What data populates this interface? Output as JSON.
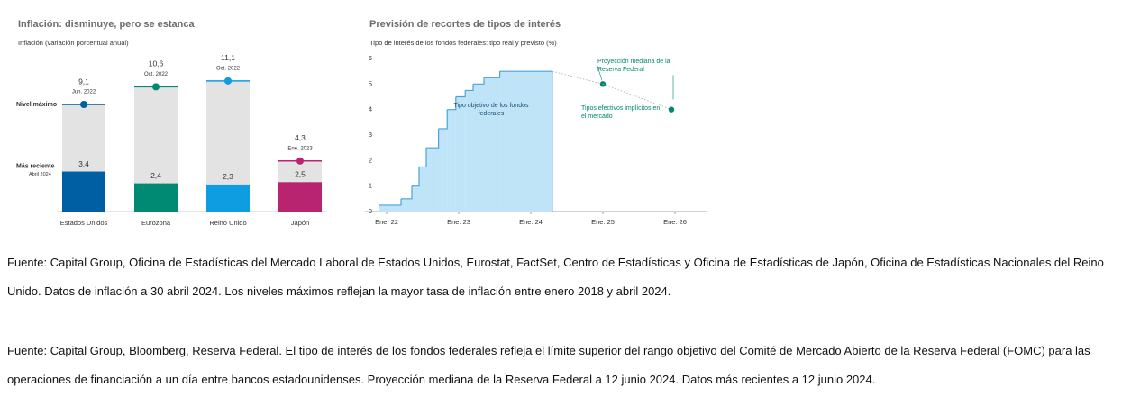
{
  "chart_data": [
    {
      "type": "bar",
      "title": "Inflación: disminuye, pero se estanca",
      "subtitle": "Inflación (variación porcentual anual)",
      "categories": [
        "Estados Unidos",
        "Eurozona",
        "Reino Unido",
        "Japón"
      ],
      "colors": [
        "#005fa3",
        "#008a73",
        "#0d9de0",
        "#b8246f"
      ],
      "background_color": "#e3e3e3",
      "ylim": [
        0,
        13
      ],
      "series": [
        {
          "name": "Nivel máximo",
          "values": [
            9.1,
            10.6,
            11.1,
            4.3
          ],
          "value_labels": [
            "9,1",
            "10,6",
            "11,1",
            "4,3"
          ],
          "dates": [
            "Jun. 2022",
            "Oct. 2022",
            "Oct. 2022",
            "Ene. 2023"
          ]
        },
        {
          "name": "Más reciente",
          "date": "Abril 2024",
          "values": [
            3.4,
            2.4,
            2.3,
            2.5
          ],
          "value_labels": [
            "3,4",
            "2,4",
            "2,3",
            "2,5"
          ]
        }
      ]
    },
    {
      "type": "step",
      "title": "Previsión de recortes de tipos de interés",
      "subtitle": "Tipo de interés de los fondos federales: tipo real y previsto (%)",
      "xlim": [
        2021.7,
        2026.45
      ],
      "xticks": [
        {
          "value": 2022,
          "label": "Ene. 22"
        },
        {
          "value": 2023,
          "label": "Ene. 23"
        },
        {
          "value": 2024,
          "label": "Ene. 24"
        },
        {
          "value": 2025,
          "label": "Ene. 25"
        },
        {
          "value": 2026,
          "label": "Ene. 26"
        }
      ],
      "ylim": [
        0,
        6
      ],
      "yticks": [
        0,
        1,
        2,
        3,
        4,
        5,
        6
      ],
      "series": [
        {
          "name": "Tipo objetivo de los fondos federales",
          "color": "#bfe4f8",
          "line_color": "#4aa3d8",
          "x": [
            2021.9,
            2022.2,
            2022.35,
            2022.45,
            2022.55,
            2022.72,
            2022.84,
            2022.96,
            2023.09,
            2023.2,
            2023.35,
            2023.57,
            2024.3
          ],
          "values": [
            0.25,
            0.5,
            1.0,
            1.75,
            2.5,
            3.25,
            4.0,
            4.5,
            4.75,
            5.0,
            5.25,
            5.5,
            5.5
          ]
        },
        {
          "name": "Proyección mediana de la Reserva Federal",
          "color": "#00876c",
          "x": [
            2025.0
          ],
          "values": [
            5.0
          ]
        },
        {
          "name": "Tipos efectivos implícitos en el mercado",
          "color": "#00876c",
          "x": [
            2025.95
          ],
          "values": [
            4.0
          ]
        }
      ]
    }
  ],
  "notes": [
    "Fuente: Capital Group, Oficina de Estadísticas del Mercado Laboral de Estados Unidos, Eurostat, FactSet, Centro de Estadísticas y Oficina de Estadísticas de Japón, Oficina de Estadísticas Nacionales del Reino Unido. Datos de inflación a 30 abril 2024. Los niveles máximos reflejan la mayor tasa de inflación entre enero 2018 y abril 2024.",
    "Fuente: Capital Group, Bloomberg, Reserva Federal. El tipo de interés de los fondos federales refleja el límite superior del rango objetivo del Comité de Mercado Abierto de la Reserva Federal (FOMC) para las operaciones de financiación a un día entre bancos estadounidenses. Proyección mediana de la Reserva Federal a 12 junio 2024. Datos más recientes a 12 junio 2024."
  ]
}
